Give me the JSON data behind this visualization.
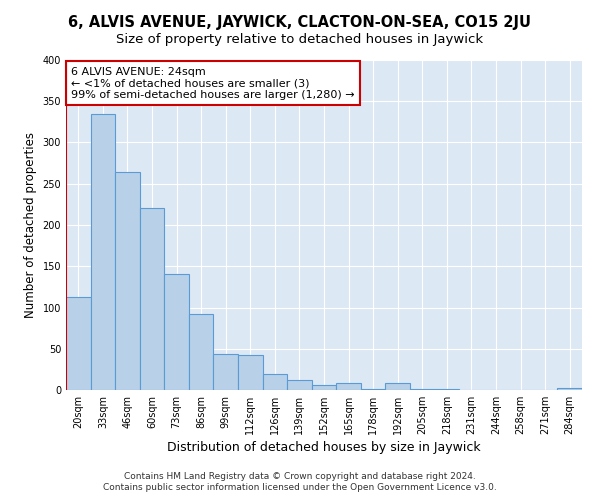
{
  "title": "6, ALVIS AVENUE, JAYWICK, CLACTON-ON-SEA, CO15 2JU",
  "subtitle": "Size of property relative to detached houses in Jaywick",
  "xlabel": "Distribution of detached houses by size in Jaywick",
  "ylabel": "Number of detached properties",
  "bar_labels": [
    "20sqm",
    "33sqm",
    "46sqm",
    "60sqm",
    "73sqm",
    "86sqm",
    "99sqm",
    "112sqm",
    "126sqm",
    "139sqm",
    "152sqm",
    "165sqm",
    "178sqm",
    "192sqm",
    "205sqm",
    "218sqm",
    "231sqm",
    "244sqm",
    "258sqm",
    "271sqm",
    "284sqm"
  ],
  "bar_values": [
    113,
    335,
    264,
    221,
    141,
    92,
    44,
    42,
    19,
    12,
    6,
    8,
    1,
    8,
    1,
    1,
    0,
    0,
    0,
    0,
    3
  ],
  "bar_color": "#b8d0e8",
  "bar_edge_color": "#5b9bd5",
  "annotation_box_text": "6 ALVIS AVENUE: 24sqm\n← <1% of detached houses are smaller (3)\n99% of semi-detached houses are larger (1,280) →",
  "annotation_box_color": "#ffffff",
  "annotation_box_edge_color": "#cc0000",
  "highlight_line_color": "#cc0000",
  "highlight_bar_index": 0,
  "ylim": [
    0,
    400
  ],
  "yticks": [
    0,
    50,
    100,
    150,
    200,
    250,
    300,
    350,
    400
  ],
  "background_color": "#dde8f5",
  "grid_color": "#ffffff",
  "footer_line1": "Contains HM Land Registry data © Crown copyright and database right 2024.",
  "footer_line2": "Contains public sector information licensed under the Open Government Licence v3.0.",
  "title_fontsize": 10.5,
  "subtitle_fontsize": 9.5,
  "xlabel_fontsize": 9,
  "ylabel_fontsize": 8.5,
  "tick_fontsize": 7,
  "annotation_fontsize": 8,
  "footer_fontsize": 6.5
}
